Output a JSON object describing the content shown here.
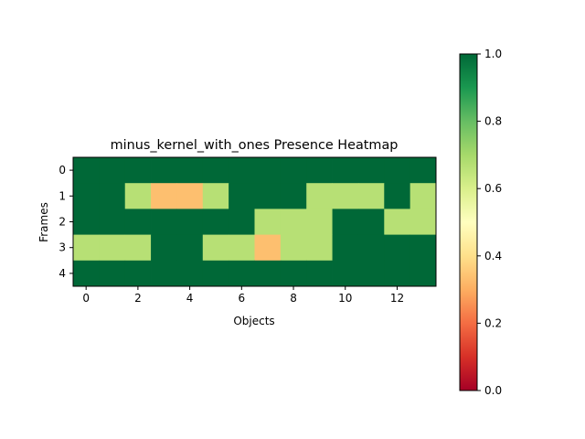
{
  "chart_data": {
    "type": "heatmap",
    "title": "minus_kernel_with_ones Presence Heatmap",
    "xlabel": "Objects",
    "ylabel": "Frames",
    "x_tick_labels": [
      "0",
      "2",
      "4",
      "6",
      "8",
      "10",
      "12"
    ],
    "y_tick_labels": [
      "0",
      "1",
      "2",
      "3",
      "4"
    ],
    "colorbar_tick_labels": [
      "0.0",
      "0.2",
      "0.4",
      "0.6",
      "0.8",
      "1.0"
    ],
    "colormap": "RdYlGn",
    "vmin": 0.0,
    "vmax": 1.0,
    "values": [
      [
        1,
        1,
        1,
        1,
        1,
        1,
        1,
        1,
        1,
        1,
        1,
        1,
        1,
        1
      ],
      [
        1,
        1,
        0.667,
        0.333,
        0.333,
        0.667,
        1,
        1,
        1,
        0.667,
        0.667,
        0.667,
        1,
        0.667
      ],
      [
        1,
        1,
        1,
        1,
        1,
        1,
        1,
        0.667,
        0.667,
        0.667,
        1,
        1,
        0.667,
        0.667
      ],
      [
        0.667,
        0.667,
        0.667,
        1,
        1,
        0.667,
        0.667,
        0.333,
        0.667,
        0.667,
        1,
        1,
        1,
        1
      ],
      [
        1,
        1,
        1,
        1,
        1,
        1,
        1,
        1,
        1,
        1,
        1,
        1,
        1,
        1
      ]
    ]
  }
}
